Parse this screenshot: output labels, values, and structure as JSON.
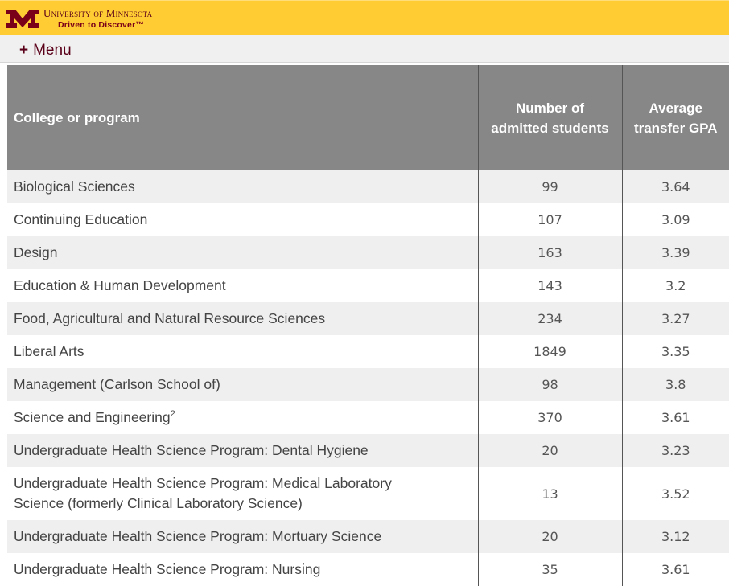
{
  "header": {
    "university": "University of Minnesota",
    "tagline": "Driven to Discover™"
  },
  "menu": {
    "icon": "plus-icon",
    "label": "Menu"
  },
  "table": {
    "headers": {
      "program": "College or program",
      "admitted_line1": "Number of",
      "admitted_line2": "admitted students",
      "gpa_line1": "Average",
      "gpa_line2": "transfer GPA"
    },
    "rows": [
      {
        "program": "Biological Sciences",
        "admitted": "99",
        "gpa": "3.64"
      },
      {
        "program": "Continuing Education",
        "admitted": "107",
        "gpa": "3.09"
      },
      {
        "program": "Design",
        "admitted": "163",
        "gpa": "3.39"
      },
      {
        "program": "Education & Human Development",
        "admitted": "143",
        "gpa": "3.2"
      },
      {
        "program": "Food, Agricultural and Natural Resource Sciences",
        "admitted": "234",
        "gpa": "3.27"
      },
      {
        "program": "Liberal Arts",
        "admitted": "1849",
        "gpa": "3.35"
      },
      {
        "program": "Management (Carlson School of)",
        "admitted": "98",
        "gpa": "3.8"
      },
      {
        "program": "Science and Engineering",
        "footnote": "2",
        "admitted": "370",
        "gpa": "3.61"
      },
      {
        "program": "Undergraduate Health Science Program: Dental Hygiene",
        "admitted": "20",
        "gpa": "3.23"
      },
      {
        "program_line1": "Undergraduate Health Science Program: Medical Laboratory",
        "program_line2": "Science (formerly Clinical Laboratory Science)",
        "admitted": "13",
        "gpa": "3.52"
      },
      {
        "program": "Undergraduate Health Science Program: Mortuary Science",
        "admitted": "20",
        "gpa": "3.12"
      },
      {
        "program": "Undergraduate Health Science Program: Nursing",
        "admitted": "35",
        "gpa": "3.61"
      }
    ]
  },
  "colors": {
    "gold": "#ffcc33",
    "maroon": "#7a0019",
    "header_gray": "#878787",
    "stripe": "#efefef"
  }
}
